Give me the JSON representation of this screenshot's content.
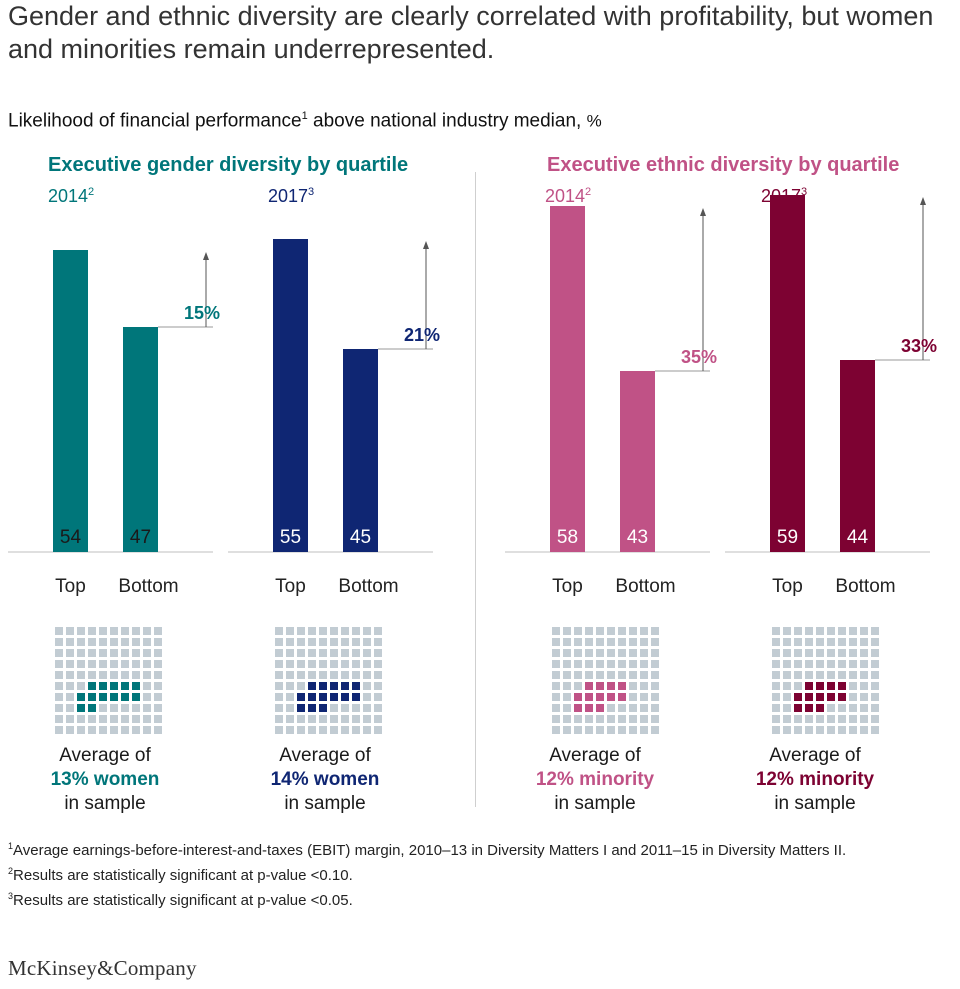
{
  "headline": "Gender and ethnic diversity are clearly correlated with profitability, but women and minorities remain underrepresented.",
  "subtitle": {
    "text": "Likelihood of financial performance",
    "sup": "1",
    "rest": " above national industry median,",
    "unit": "%"
  },
  "colors": {
    "gender2014": "#00767a",
    "gender2017": "#0f2673",
    "ethnic2014": "#c05286",
    "ethnic2017": "#7d0232",
    "square_gray": "#c2ccd3"
  },
  "sections": [
    {
      "title": "Executive gender diversity by quartile",
      "color": "#00767a"
    },
    {
      "title": "Executive ethnic diversity by quartile",
      "color": "#c05286"
    }
  ],
  "chart_data": {
    "type": "bar",
    "title": "Likelihood of financial performance above national industry median, %",
    "categories": [
      "Top",
      "Bottom"
    ],
    "panels": [
      {
        "group": "Executive gender diversity by quartile",
        "year": "2014",
        "year_sup": "2",
        "top": 54,
        "bottom": 47,
        "difference": "15%",
        "color": "#00767a",
        "sample_pct": 13,
        "caption": [
          "Average of",
          "13% women",
          "in sample"
        ]
      },
      {
        "group": "Executive gender diversity by quartile",
        "year": "2017",
        "year_sup": "3",
        "top": 55,
        "bottom": 45,
        "difference": "21%",
        "color": "#0f2673",
        "sample_pct": 14,
        "caption": [
          "Average of",
          "14% women",
          "in sample"
        ]
      },
      {
        "group": "Executive ethnic diversity by quartile",
        "year": "2014",
        "year_sup": "2",
        "top": 58,
        "bottom": 43,
        "difference": "35%",
        "color": "#c05286",
        "sample_pct": 12,
        "caption": [
          "Average of",
          "12% minority",
          "in sample"
        ]
      },
      {
        "group": "Executive ethnic diversity by quartile",
        "year": "2017",
        "year_sup": "3",
        "top": 59,
        "bottom": 44,
        "difference": "33%",
        "color": "#7d0232",
        "sample_pct": 12,
        "caption": [
          "Average of",
          "12% minority",
          "in sample"
        ]
      }
    ]
  },
  "footnotes": [
    {
      "sup": "1",
      "text": "Average earnings-before-interest-and-taxes (EBIT) margin, 2010–13 in Diversity Matters I and 2011–15 in Diversity Matters II."
    },
    {
      "sup": "2",
      "text": "Results are statistically significant at p-value <0.10."
    },
    {
      "sup": "3",
      "text": "Results are statistically significant at p-value <0.05."
    }
  ],
  "brand": "McKinsey&Company"
}
